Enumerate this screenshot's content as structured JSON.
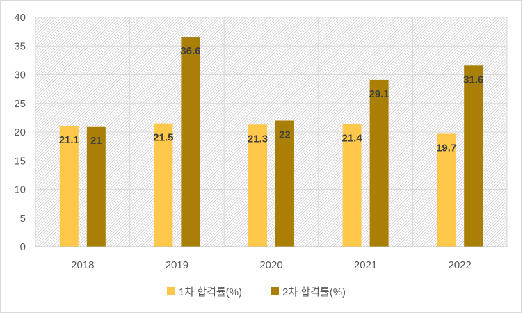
{
  "chart_data": {
    "type": "bar",
    "categories": [
      "2018",
      "2019",
      "2020",
      "2021",
      "2022"
    ],
    "series": [
      {
        "name": "1차 합격률(%)",
        "values": [
          21.1,
          21.5,
          21.3,
          21.4,
          19.7
        ],
        "value_labels": [
          "21.1",
          "21.5",
          "21.3",
          "21.4",
          "19.7"
        ],
        "color": "#FFC84B"
      },
      {
        "name": "2차 합격률(%)",
        "values": [
          21,
          36.6,
          22,
          29.1,
          31.6
        ],
        "value_labels": [
          "21",
          "36.6",
          "22",
          "29.1",
          "31.6"
        ],
        "color": "#A97F05"
      }
    ],
    "ylim": [
      0,
      40
    ],
    "yticks": [
      "0",
      "5",
      "10",
      "15",
      "20",
      "25",
      "30",
      "35",
      "40"
    ],
    "grid": true,
    "plot_background": "hatched light gray",
    "legend_position": "bottom",
    "title": "",
    "xlabel": "",
    "ylabel": ""
  }
}
